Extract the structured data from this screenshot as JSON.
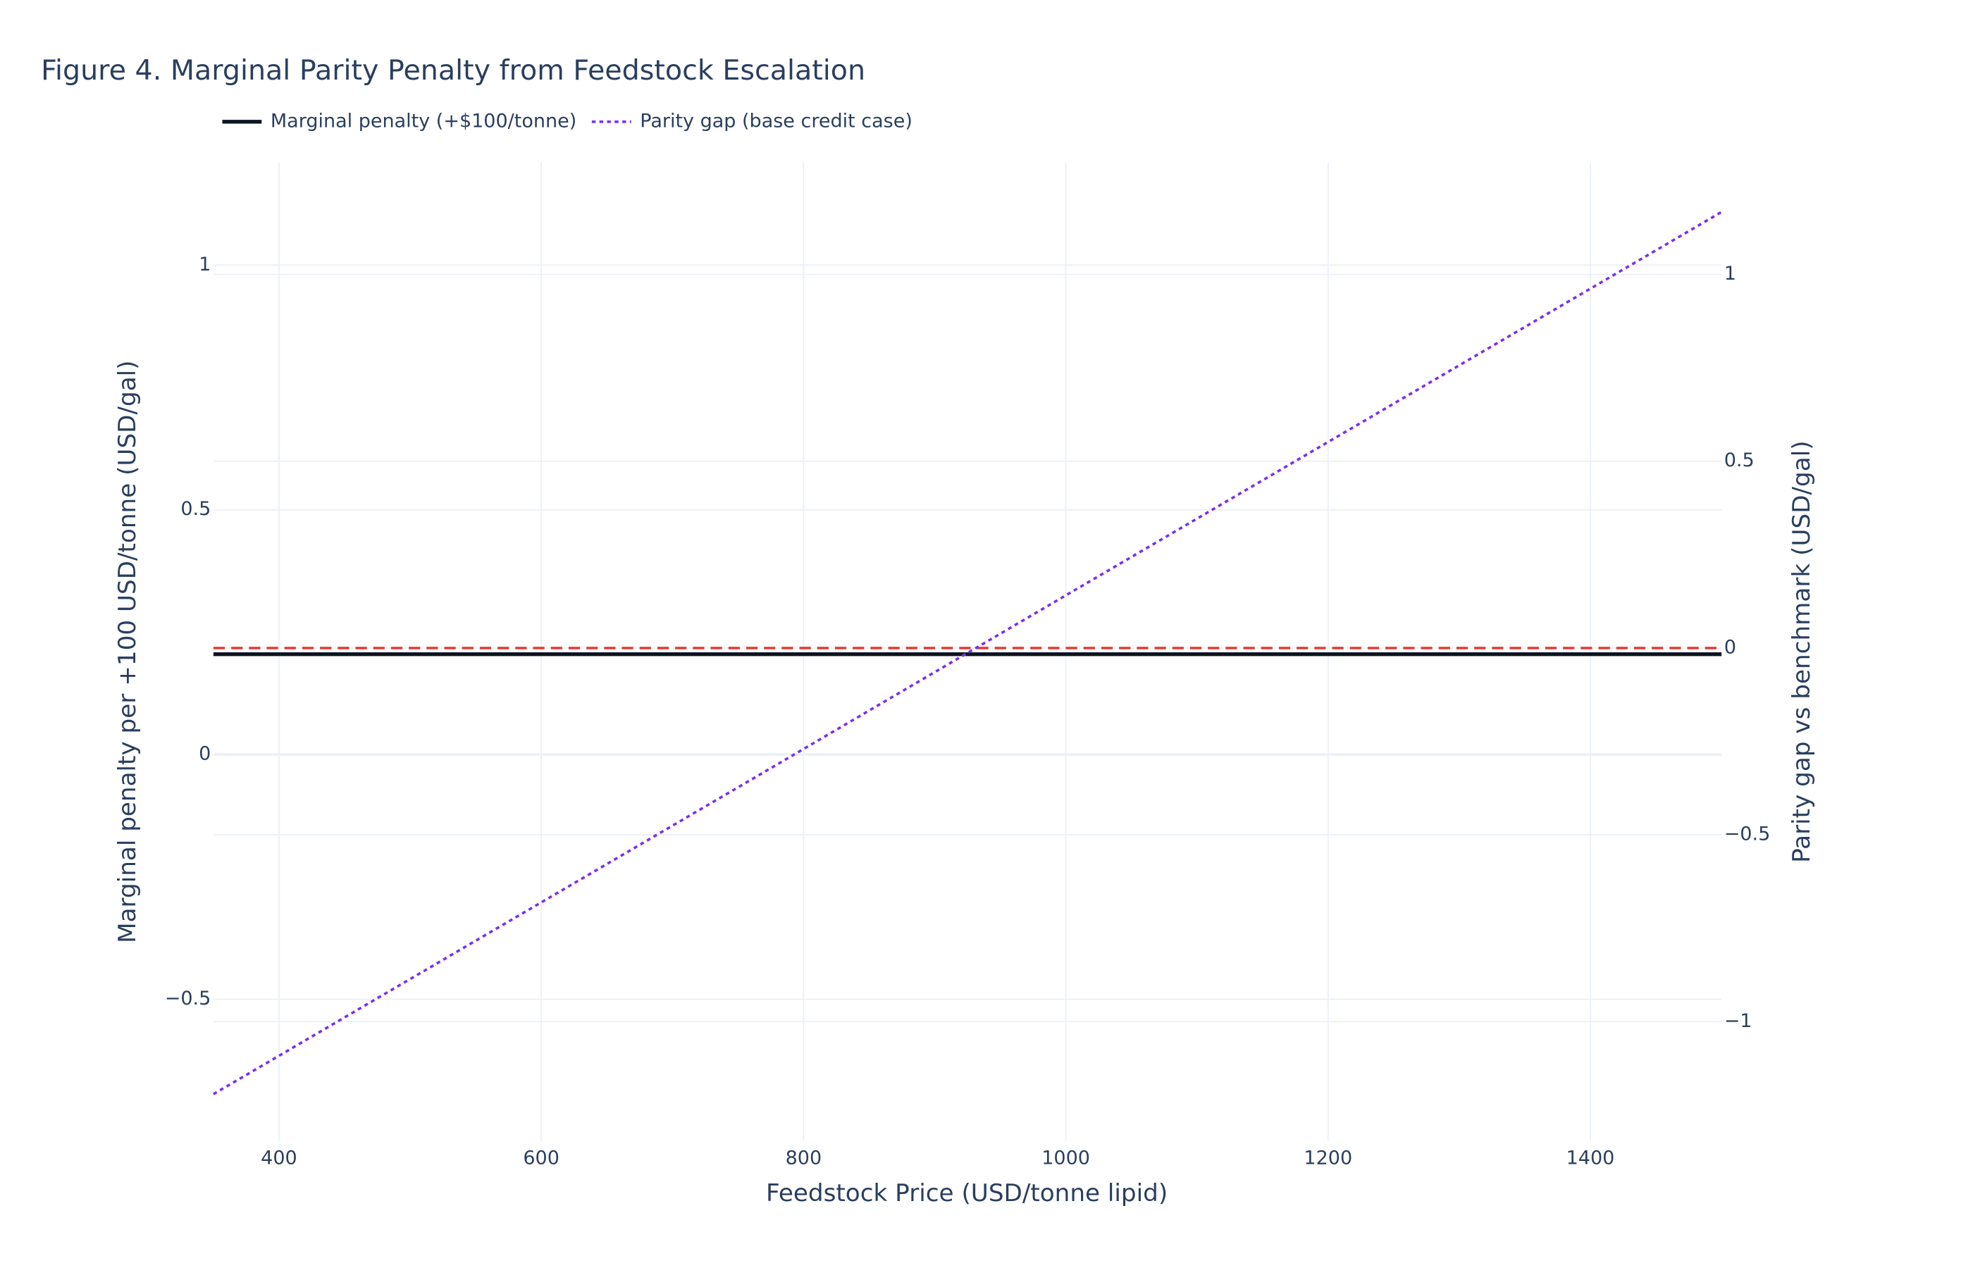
{
  "chart_data": {
    "type": "line",
    "title": "Figure 4. Marginal Parity Penalty from Feedstock Escalation",
    "x_label": "Feedstock Price (USD/tonne lipid)",
    "y_label": "Marginal penalty per +100 USD/tonne (USD/gal)",
    "y2_label": "Parity gap vs benchmark (USD/gal)",
    "xlim": [
      350,
      1500
    ],
    "xticks": [
      400,
      600,
      800,
      1000,
      1200,
      1400
    ],
    "ylim": [
      -0.79,
      1.21
    ],
    "yticks": [
      {
        "value": -0.5,
        "label": "−0.5"
      },
      0,
      0.5,
      1
    ],
    "y2lim": [
      -1.32,
      1.3
    ],
    "y2ticks": [
      {
        "value": -1,
        "label": "−1"
      },
      {
        "value": -0.5,
        "label": "−0.5"
      },
      0,
      0.5,
      1
    ],
    "grid": true,
    "legend": "top-left",
    "hline": {
      "axis": "y2",
      "value": 0,
      "color": "#e0403a",
      "dash": "dashed"
    },
    "series": [
      {
        "name": "Marginal penalty (+$100/tonne)",
        "color": "#0d1321",
        "dash": "solid",
        "axis": "y",
        "x": [
          350,
          1500
        ],
        "values": [
          0.205,
          0.205
        ]
      },
      {
        "name": "Parity gap (base credit case)",
        "color": "#7b2ff0",
        "dash": "dotted",
        "axis": "y2",
        "x": [
          350,
          500,
          750,
          1000,
          1250,
          1500
        ],
        "values": [
          -1.194,
          -0.886,
          -0.373,
          0.141,
          0.654,
          1.167
        ]
      }
    ]
  }
}
